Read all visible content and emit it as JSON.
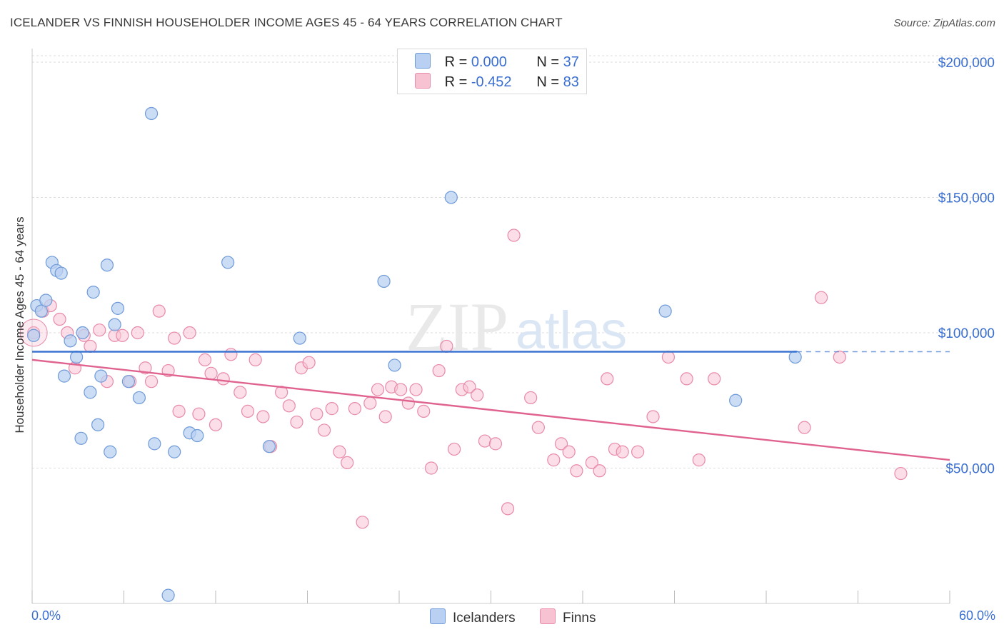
{
  "header": {
    "title": "ICELANDER VS FINNISH HOUSEHOLDER INCOME AGES 45 - 64 YEARS CORRELATION CHART",
    "source": "Source: ZipAtlas.com"
  },
  "legend": {
    "rows": [
      {
        "r_label": "R = ",
        "r_value": "0.000",
        "n_label": "N = ",
        "n_value": "37"
      },
      {
        "r_label": "R = ",
        "r_value": "-0.452",
        "n_label": "N = ",
        "n_value": "83"
      }
    ]
  },
  "watermark": {
    "zip": "ZIP",
    "atlas": "atlas"
  },
  "colors": {
    "blue_fill": "#b9d0f2",
    "blue_stroke": "#6e9ad8",
    "blue_line": "#3a74d0",
    "pink_fill": "#f7c3d3",
    "pink_stroke": "#e88aa8",
    "pink_line": "#e0638f",
    "axis_text": "#3a6fd0",
    "grid": "#dddddd"
  },
  "chart_data": {
    "type": "scatter",
    "title": "ICELANDER VS FINNISH HOUSEHOLDER INCOME AGES 45 - 64 YEARS CORRELATION CHART",
    "xlabel": "",
    "ylabel": "Householder Income Ages 45 - 64 years",
    "xlim": [
      0,
      60
    ],
    "ylim": [
      0,
      205000
    ],
    "x_tick_labels": [
      "0.0%",
      "60.0%"
    ],
    "y_ticks": [
      50000,
      100000,
      150000,
      200000
    ],
    "y_tick_labels": [
      "$50,000",
      "$100,000",
      "$150,000",
      "$200,000"
    ],
    "grid": true,
    "legend_position": "top-center",
    "series": [
      {
        "name": "Icelanders",
        "color": "#b9d0f2",
        "trend": {
          "x": [
            0,
            50
          ],
          "y": [
            93000,
            93000
          ],
          "dashed_to": 60
        },
        "points": [
          [
            0.1,
            99000
          ],
          [
            0.3,
            110000
          ],
          [
            0.6,
            108000
          ],
          [
            0.9,
            112000
          ],
          [
            1.3,
            126000
          ],
          [
            1.6,
            123000
          ],
          [
            1.9,
            122000
          ],
          [
            2.1,
            84000
          ],
          [
            2.5,
            97000
          ],
          [
            2.9,
            91000
          ],
          [
            3.3,
            100000
          ],
          [
            3.8,
            78000
          ],
          [
            4.0,
            115000
          ],
          [
            4.3,
            66000
          ],
          [
            4.5,
            84000
          ],
          [
            4.9,
            125000
          ],
          [
            5.1,
            56000
          ],
          [
            5.4,
            103000
          ],
          [
            5.6,
            109000
          ],
          [
            6.3,
            82000
          ],
          [
            7.0,
            76000
          ],
          [
            3.2,
            61000
          ],
          [
            7.8,
            181000
          ],
          [
            8.0,
            59000
          ],
          [
            8.9,
            3000
          ],
          [
            9.3,
            56000
          ],
          [
            10.3,
            63000
          ],
          [
            10.8,
            62000
          ],
          [
            12.8,
            126000
          ],
          [
            15.5,
            58000
          ],
          [
            17.5,
            98000
          ],
          [
            23.0,
            119000
          ],
          [
            23.7,
            88000
          ],
          [
            27.4,
            150000
          ],
          [
            41.4,
            108000
          ],
          [
            46.0,
            75000
          ],
          [
            49.9,
            91000
          ]
        ]
      },
      {
        "name": "Finns",
        "color": "#f7c3d3",
        "trend": {
          "x": [
            0,
            60
          ],
          "y": [
            90000,
            53000
          ]
        },
        "points": [
          [
            0.1,
            100000
          ],
          [
            0.7,
            108000
          ],
          [
            1.2,
            110000
          ],
          [
            1.8,
            105000
          ],
          [
            2.3,
            100000
          ],
          [
            2.8,
            87000
          ],
          [
            3.4,
            99000
          ],
          [
            3.8,
            95000
          ],
          [
            4.4,
            101000
          ],
          [
            4.9,
            82000
          ],
          [
            5.4,
            99000
          ],
          [
            5.9,
            99000
          ],
          [
            6.4,
            82000
          ],
          [
            6.9,
            100000
          ],
          [
            7.4,
            87000
          ],
          [
            7.8,
            82000
          ],
          [
            8.3,
            108000
          ],
          [
            8.9,
            86000
          ],
          [
            9.3,
            98000
          ],
          [
            9.6,
            71000
          ],
          [
            10.3,
            100000
          ],
          [
            10.9,
            70000
          ],
          [
            11.3,
            90000
          ],
          [
            11.7,
            85000
          ],
          [
            12.0,
            66000
          ],
          [
            12.5,
            83000
          ],
          [
            13.0,
            92000
          ],
          [
            13.6,
            78000
          ],
          [
            14.1,
            71000
          ],
          [
            14.6,
            90000
          ],
          [
            15.1,
            69000
          ],
          [
            15.6,
            58000
          ],
          [
            16.3,
            78000
          ],
          [
            16.8,
            73000
          ],
          [
            17.3,
            67000
          ],
          [
            17.6,
            87000
          ],
          [
            18.1,
            89000
          ],
          [
            18.6,
            70000
          ],
          [
            19.1,
            64000
          ],
          [
            19.6,
            72000
          ],
          [
            20.1,
            56000
          ],
          [
            20.6,
            52000
          ],
          [
            21.1,
            72000
          ],
          [
            21.6,
            30000
          ],
          [
            22.1,
            74000
          ],
          [
            22.6,
            79000
          ],
          [
            23.1,
            69000
          ],
          [
            23.5,
            80000
          ],
          [
            24.1,
            79000
          ],
          [
            24.6,
            74000
          ],
          [
            25.1,
            79000
          ],
          [
            25.6,
            71000
          ],
          [
            26.1,
            50000
          ],
          [
            26.6,
            86000
          ],
          [
            27.1,
            95000
          ],
          [
            27.6,
            57000
          ],
          [
            28.1,
            79000
          ],
          [
            28.6,
            80000
          ],
          [
            29.1,
            77000
          ],
          [
            29.6,
            60000
          ],
          [
            30.3,
            59000
          ],
          [
            31.1,
            35000
          ],
          [
            31.5,
            136000
          ],
          [
            32.6,
            76000
          ],
          [
            33.1,
            65000
          ],
          [
            34.1,
            53000
          ],
          [
            34.6,
            59000
          ],
          [
            35.1,
            56000
          ],
          [
            35.6,
            49000
          ],
          [
            36.6,
            52000
          ],
          [
            37.1,
            49000
          ],
          [
            37.6,
            83000
          ],
          [
            38.1,
            57000
          ],
          [
            38.6,
            56000
          ],
          [
            39.6,
            56000
          ],
          [
            40.6,
            69000
          ],
          [
            41.6,
            91000
          ],
          [
            42.8,
            83000
          ],
          [
            43.6,
            53000
          ],
          [
            44.6,
            83000
          ],
          [
            50.5,
            65000
          ],
          [
            51.6,
            113000
          ],
          [
            52.8,
            91000
          ],
          [
            56.8,
            48000
          ]
        ]
      }
    ]
  },
  "bottom_legend": {
    "items": [
      "Icelanders",
      "Finns"
    ]
  },
  "axis": {
    "x_left": "0.0%",
    "x_right": "60.0%"
  }
}
